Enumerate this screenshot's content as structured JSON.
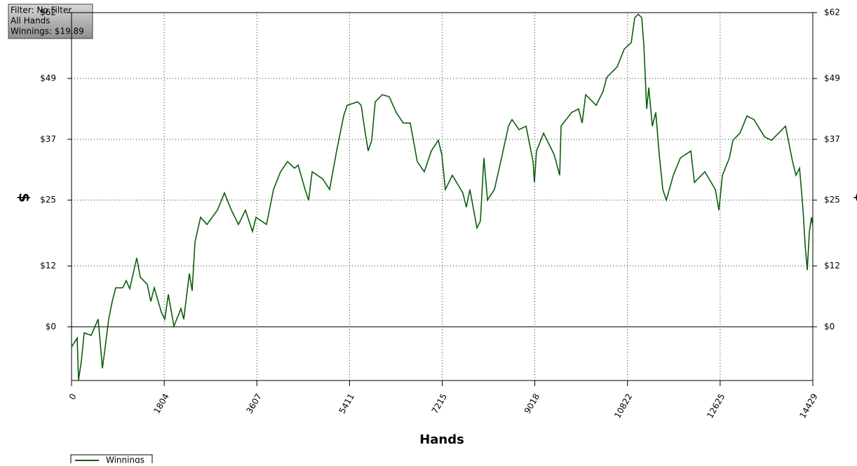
{
  "chart_data": {
    "type": "line",
    "annotations": [
      "Filter: No Filter",
      "All Hands",
      "Winnings: $19.89"
    ],
    "xlabel": "Hands",
    "ylabel": "$",
    "x": [
      0,
      109,
      137,
      191,
      246,
      382,
      519,
      560,
      601,
      655,
      724,
      792,
      860,
      997,
      1065,
      1133,
      1270,
      1338,
      1474,
      1543,
      1611,
      1747,
      1816,
      1884,
      1993,
      2130,
      2184,
      2293,
      2348,
      2403,
      2512,
      2635,
      2840,
      2976,
      3113,
      3249,
      3386,
      3522,
      3591,
      3795,
      3932,
      4068,
      4205,
      4341,
      4410,
      4546,
      4614,
      4683,
      4887,
      5024,
      5160,
      5297,
      5365,
      5570,
      5638,
      5707,
      5775,
      5843,
      5911,
      6048,
      6184,
      6321,
      6457,
      6594,
      6730,
      6867,
      7003,
      7140,
      7208,
      7276,
      7413,
      7617,
      7686,
      7754,
      7891,
      7959,
      8027,
      8096,
      8232,
      8369,
      8505,
      8574,
      8710,
      8847,
      8983,
      9010,
      9051,
      9188,
      9393,
      9502,
      9529,
      9734,
      9870,
      9939,
      10007,
      10212,
      10348,
      10416,
      10621,
      10758,
      10895,
      10963,
      11031,
      11099,
      11140,
      11195,
      11236,
      11304,
      11372,
      11440,
      11509,
      11577,
      11714,
      11850,
      12055,
      12123,
      12328,
      12532,
      12601,
      12669,
      12805,
      12874,
      13010,
      13147,
      13283,
      13488,
      13625,
      13898,
      14034,
      14102,
      14171,
      14239,
      14280,
      14321,
      14362,
      14403,
      14429
    ],
    "series": [
      {
        "name": "Winnings",
        "color": "#0b5e0b",
        "values": [
          -4.0,
          -2.2,
          -10.5,
          -6.8,
          -1.2,
          -1.7,
          1.5,
          -3.3,
          -8.2,
          -4.0,
          1.5,
          5.0,
          7.7,
          7.7,
          9.1,
          7.5,
          13.6,
          9.8,
          8.4,
          5.0,
          7.7,
          2.9,
          1.5,
          6.4,
          0.1,
          3.6,
          1.5,
          10.5,
          7.1,
          16.7,
          21.6,
          20.2,
          23.0,
          26.4,
          23.0,
          20.2,
          23.0,
          18.8,
          21.6,
          20.2,
          27.1,
          30.6,
          32.6,
          31.3,
          31.9,
          27.1,
          25.0,
          30.6,
          29.2,
          27.1,
          34.7,
          41.6,
          43.7,
          44.4,
          43.7,
          38.9,
          34.7,
          36.8,
          44.4,
          45.8,
          45.4,
          42.3,
          40.2,
          40.2,
          32.6,
          30.6,
          34.7,
          36.8,
          34.0,
          27.1,
          29.9,
          26.4,
          23.6,
          27.1,
          19.5,
          20.9,
          33.3,
          25.0,
          27.1,
          33.3,
          39.6,
          40.9,
          38.9,
          39.6,
          32.6,
          28.5,
          34.7,
          38.2,
          34.0,
          29.9,
          39.6,
          42.3,
          43.0,
          40.2,
          45.8,
          43.7,
          46.5,
          49.2,
          51.3,
          54.8,
          56.1,
          61.0,
          61.7,
          61.0,
          55.5,
          43.0,
          47.2,
          39.6,
          42.3,
          34.0,
          27.1,
          25.0,
          29.9,
          33.3,
          34.7,
          28.5,
          30.6,
          27.1,
          23.0,
          29.9,
          33.3,
          36.8,
          38.2,
          41.6,
          40.9,
          37.5,
          36.8,
          39.6,
          32.6,
          29.9,
          31.3,
          23.0,
          16.0,
          11.2,
          18.8,
          21.6,
          19.89
        ]
      }
    ],
    "xlim": [
      0,
      14429
    ],
    "ylim": [
      -10.6,
      62
    ],
    "xticks": [
      0,
      1804,
      3607,
      5411,
      7215,
      9018,
      10822,
      12625,
      14429
    ],
    "yticks": [
      {
        "value": 0,
        "label": "$0"
      },
      {
        "value": 12,
        "label": "$12"
      },
      {
        "value": 25,
        "label": "$25"
      },
      {
        "value": 37,
        "label": "$37"
      },
      {
        "value": 49,
        "label": "$49"
      },
      {
        "value": 62,
        "label": "$62"
      }
    ],
    "grid": true,
    "legend": "bottom-left"
  }
}
